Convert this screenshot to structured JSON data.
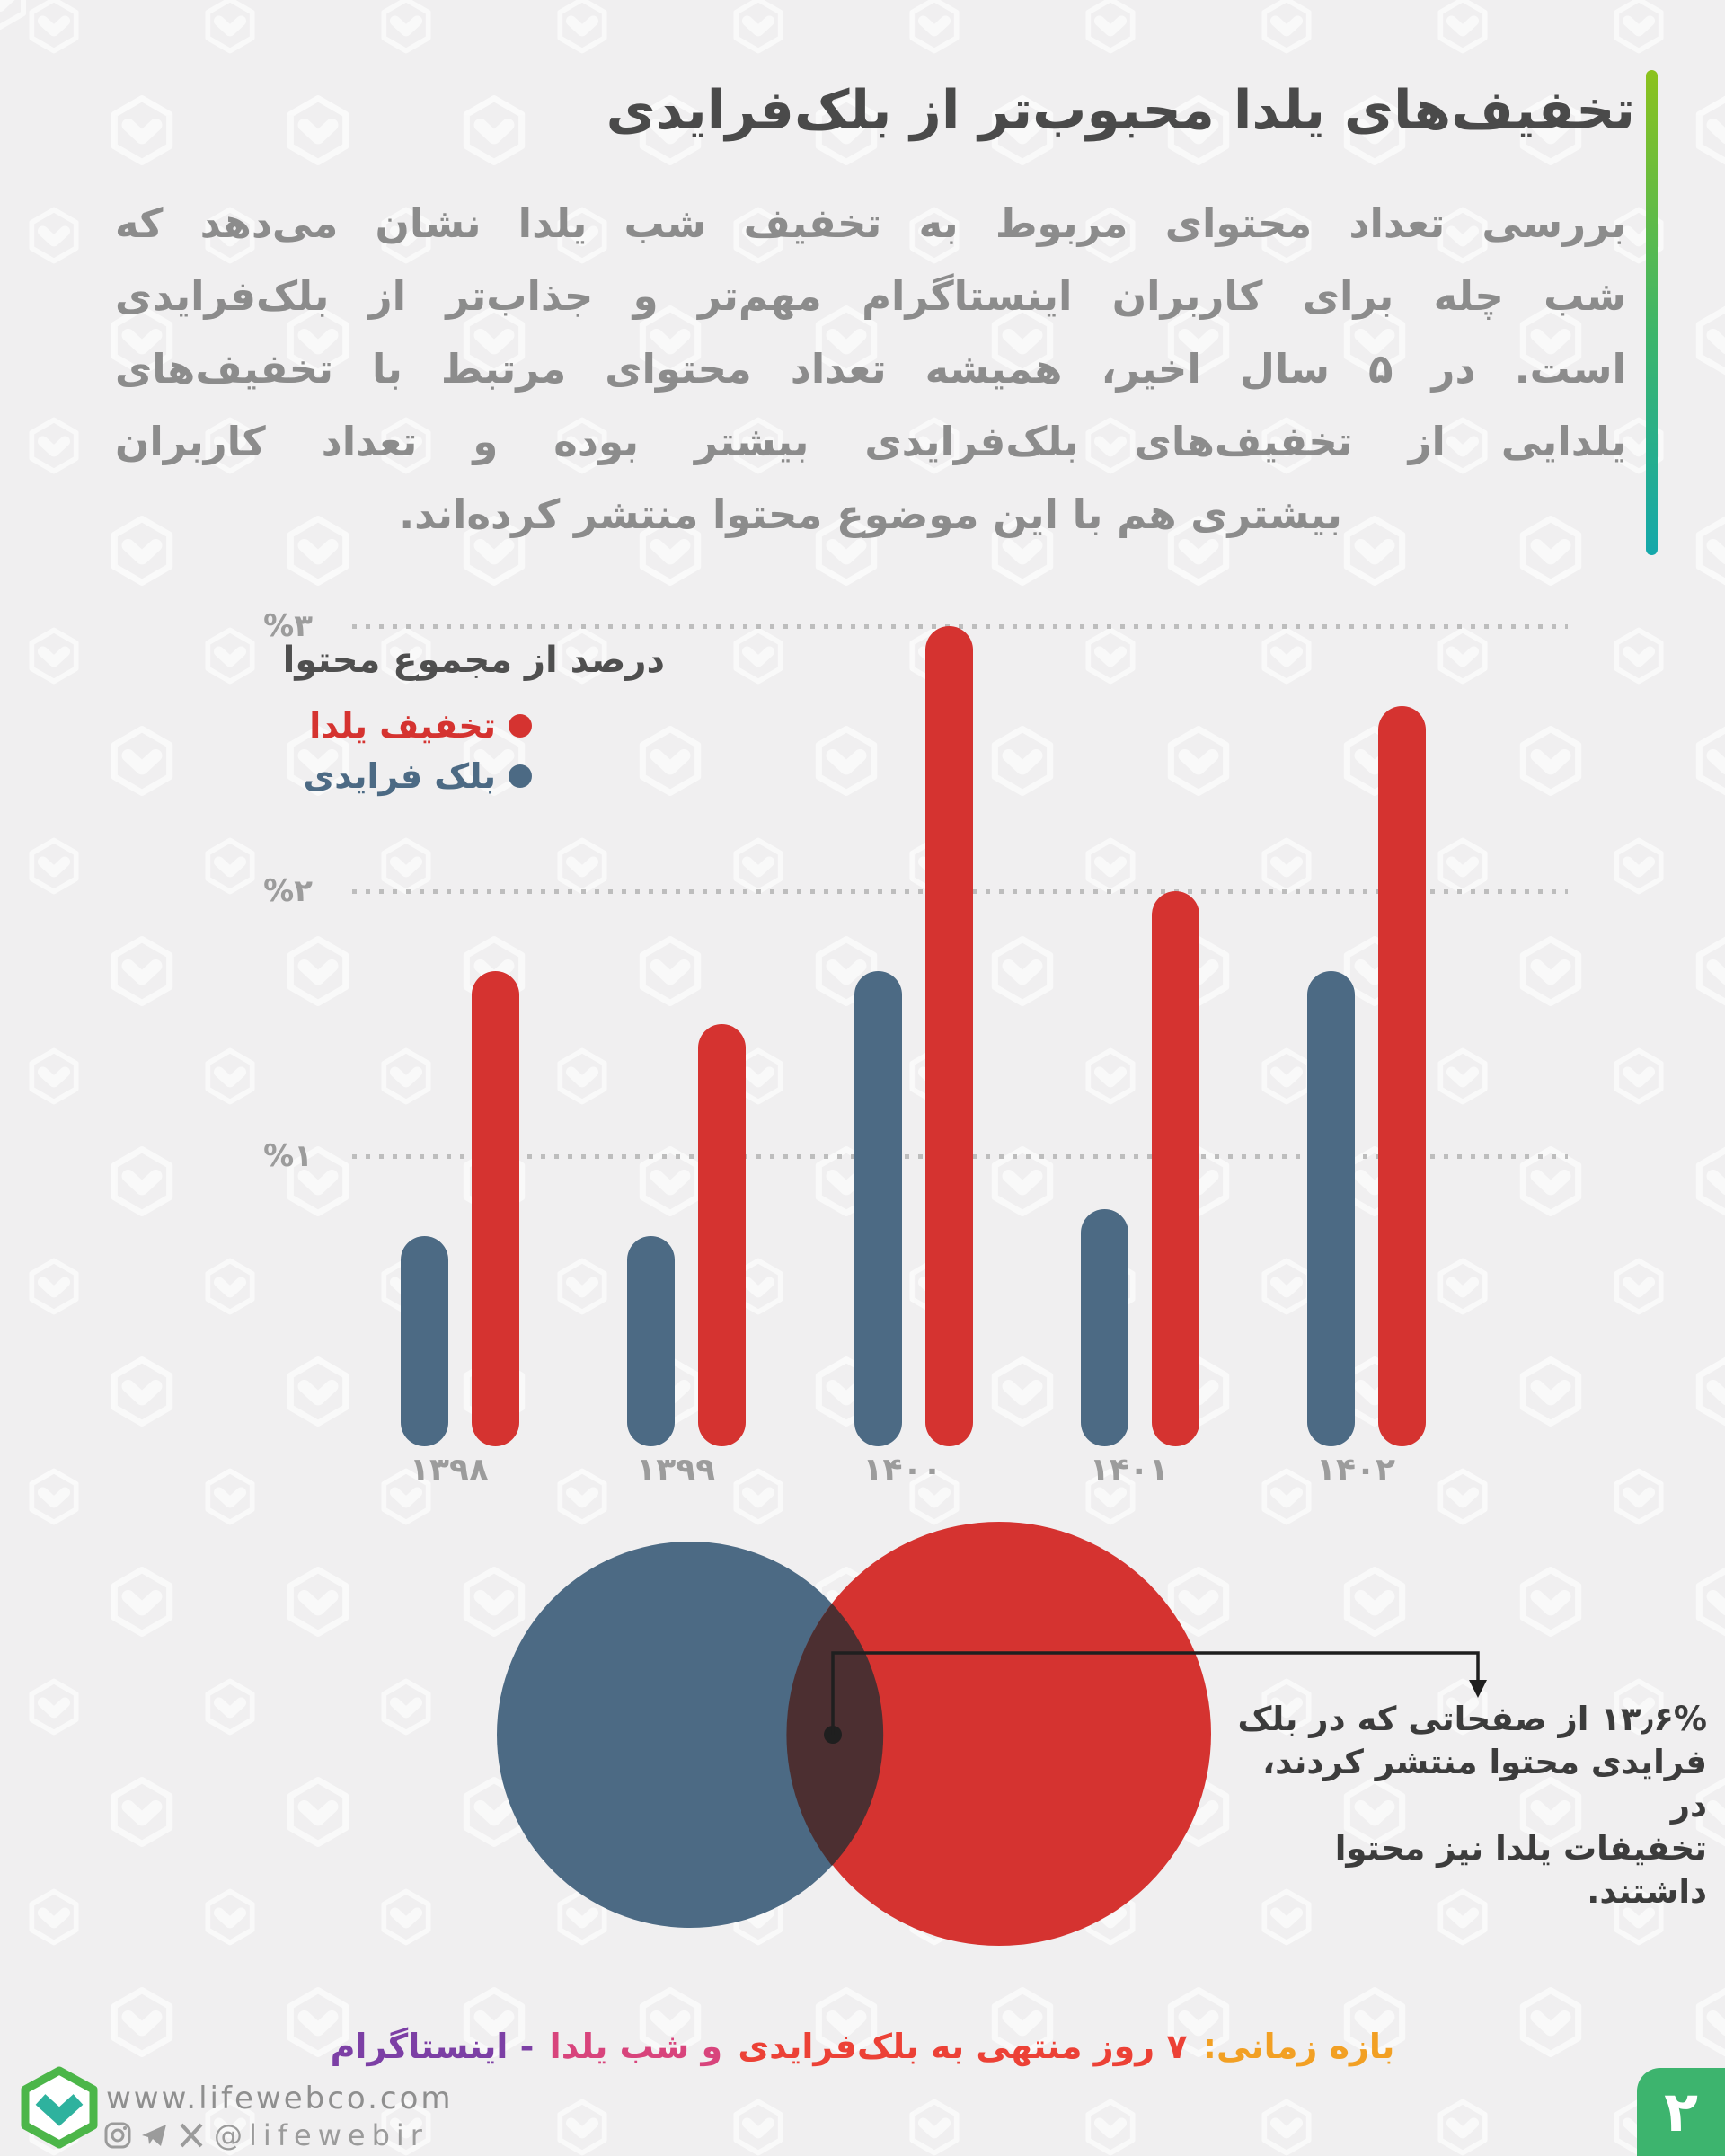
{
  "page": {
    "background": "#f0eff0",
    "accent_gradient_top": "#8cc21d",
    "accent_gradient_bottom": "#14a8ab",
    "page_number": "۲",
    "page_number_box_color": "#3db46e"
  },
  "header": {
    "title": "تخفیف‌های یلدا محبوب‌تر از بلک‌فرایدی",
    "body_lines": [
      "بررسی تعداد محتوای مربوط به تخفیف شب یلدا نشان می‌دهد که",
      "شب چله برای کاربران اینستاگرام مهم‌تر و جذاب‌تر از بلک‌فرایدی",
      "است. در ۵ سال اخیر، همیشه تعداد محتوای مرتبط با تخفیف‌های",
      "یلدایی از تخفیف‌های بلک‌فرایدی بیشتر بوده و تعداد کاربران",
      "بیشتری هم با این موضوع محتوا منتشر کرده‌اند."
    ]
  },
  "chart_data": {
    "type": "bar",
    "title": "درصد از مجموع محتوا",
    "categories": [
      "۱۳۹۸",
      "۱۳۹۹",
      "۱۴۰۰",
      "۱۴۰۱",
      "۱۴۰۲"
    ],
    "series": [
      {
        "name": "تخفیف یلدا",
        "color": "#d53330",
        "values": [
          1.7,
          1.5,
          3.0,
          2.0,
          2.7
        ]
      },
      {
        "name": "بلک فرایدی",
        "color": "#4c6a84",
        "values": [
          0.7,
          0.7,
          1.7,
          0.8,
          1.7
        ]
      }
    ],
    "y_ticks": [
      {
        "label": "%۱",
        "value": 1
      },
      {
        "label": "%۲",
        "value": 2
      },
      {
        "label": "%۳",
        "value": 3
      }
    ],
    "ylim": [
      0,
      3.2
    ],
    "grid": "dotted-horizontal",
    "legend_position": "inside-top-start"
  },
  "venn": {
    "circles": [
      {
        "series": "بلک فرایدی",
        "color": "#4c6a84"
      },
      {
        "series": "تخفیف یلدا",
        "color": "#d53330"
      }
    ],
    "overlap_color": "#4c2f31",
    "annotation_value": "۱۳٫۶%",
    "annotation_lines": [
      "۱۳٫۶% از صفحاتی که در بلک",
      "فرایدی محتوا منتشر کردند، در",
      "تخفیفات یلدا نیز محتوا داشتند."
    ]
  },
  "caption": {
    "segments": [
      {
        "text": "بازه زمانی: ",
        "color": "#f2a024"
      },
      {
        "text": "۷ روز منتهی به بلک‌فرایدی ",
        "color": "#ec4136"
      },
      {
        "text": "و شب یلدا ",
        "color": "#d8447c"
      },
      {
        "text": "- اینستاگرام",
        "color": "#7c3fa5"
      }
    ]
  },
  "footer": {
    "website": "www.lifewebco.com",
    "handle": "@lifewebir"
  }
}
